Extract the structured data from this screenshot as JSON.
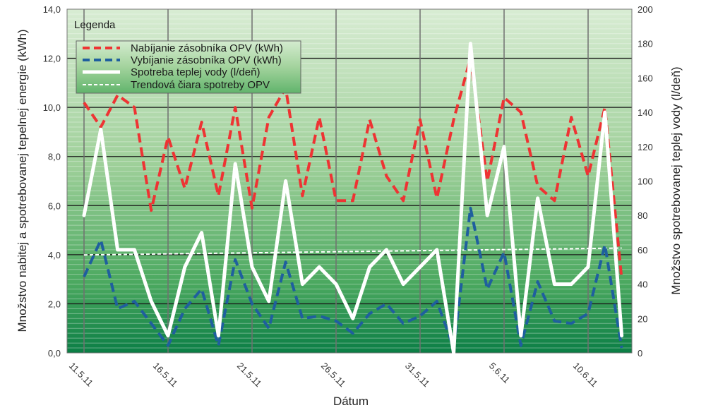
{
  "chart_data": {
    "type": "line",
    "title": "",
    "xlabel": "Dátum",
    "ylabel": "Množstvo nabitej a spotrebovanej tepelnej energie (kWh)",
    "y2label": "Množstvo spotrebovanej teplej vody (l/deň)",
    "ylim": [
      0,
      14
    ],
    "y2lim": [
      0,
      200
    ],
    "yticks": [
      "0,0",
      "2,0",
      "4,0",
      "6,0",
      "8,0",
      "10,0",
      "12,0",
      "14,0"
    ],
    "y2ticks": [
      "0",
      "20",
      "40",
      "60",
      "80",
      "100",
      "120",
      "140",
      "160",
      "180",
      "200"
    ],
    "x_tick_labels": [
      "11.5.11",
      "16.5.11",
      "21.5.11",
      "26.5.11",
      "31.5.11",
      "5.6.11",
      "10.6.11"
    ],
    "x_tick_positions": [
      0,
      5,
      10,
      15,
      20,
      25,
      30
    ],
    "grid": true,
    "legend_title": "Legenda",
    "legend_position": "top-left",
    "series": [
      {
        "name": "Nabíjanie zásobníka OPV (kWh)",
        "axis": "left",
        "style": "dashed",
        "color": "#ee3333",
        "x": [
          0,
          1,
          2,
          3,
          4,
          5,
          6,
          7,
          8,
          9,
          10,
          11,
          12,
          13,
          14,
          15,
          16,
          17,
          18,
          19,
          20,
          21,
          22,
          23,
          24,
          25,
          26,
          27,
          28,
          29,
          30,
          31,
          32
        ],
        "values": [
          10.2,
          9.2,
          10.5,
          10.0,
          5.8,
          8.8,
          6.7,
          9.4,
          6.4,
          10.0,
          5.9,
          9.6,
          10.8,
          6.4,
          9.6,
          6.2,
          6.2,
          9.5,
          7.2,
          6.2,
          9.5,
          6.3,
          9.5,
          12.0,
          7.0,
          10.4,
          9.8,
          6.8,
          6.2,
          9.6,
          7.2,
          10.0,
          3.0
        ]
      },
      {
        "name": "Vybíjanie zásobníka OPV (kWh)",
        "axis": "left",
        "style": "dashed",
        "color": "#1f5f9e",
        "x": [
          0,
          1,
          2,
          3,
          4,
          5,
          6,
          7,
          8,
          9,
          10,
          11,
          12,
          13,
          14,
          15,
          16,
          17,
          18,
          19,
          20,
          21,
          22,
          23,
          24,
          25,
          26,
          27,
          28,
          29,
          30,
          31,
          32
        ],
        "values": [
          3.1,
          4.6,
          1.8,
          2.1,
          1.2,
          0.3,
          1.8,
          2.6,
          0.3,
          3.8,
          2.0,
          1.0,
          3.7,
          1.4,
          1.5,
          1.3,
          0.8,
          1.6,
          2.0,
          1.2,
          1.5,
          2.1,
          0.2,
          5.9,
          2.6,
          4.1,
          0.3,
          2.9,
          1.3,
          1.2,
          1.6,
          4.4,
          0.2
        ]
      },
      {
        "name": "Spotreba teplej vody (l/deň)",
        "axis": "right",
        "style": "solid",
        "color": "#ffffff",
        "x": [
          0,
          1,
          2,
          3,
          4,
          5,
          6,
          7,
          8,
          9,
          10,
          11,
          12,
          13,
          14,
          15,
          16,
          17,
          18,
          19,
          20,
          21,
          22,
          23,
          24,
          25,
          26,
          27,
          28,
          29,
          30,
          31,
          32
        ],
        "values": [
          80,
          130,
          60,
          60,
          30,
          10,
          50,
          70,
          10,
          110,
          50,
          30,
          100,
          40,
          50,
          40,
          20,
          50,
          60,
          40,
          50,
          60,
          0,
          180,
          80,
          120,
          10,
          90,
          40,
          40,
          50,
          140,
          10
        ]
      },
      {
        "name": "Trendová čiara spotreby OPV",
        "axis": "right",
        "style": "dashed-thin",
        "color": "#ffffff",
        "x": [
          0,
          32
        ],
        "values": [
          57,
          61
        ]
      }
    ]
  }
}
